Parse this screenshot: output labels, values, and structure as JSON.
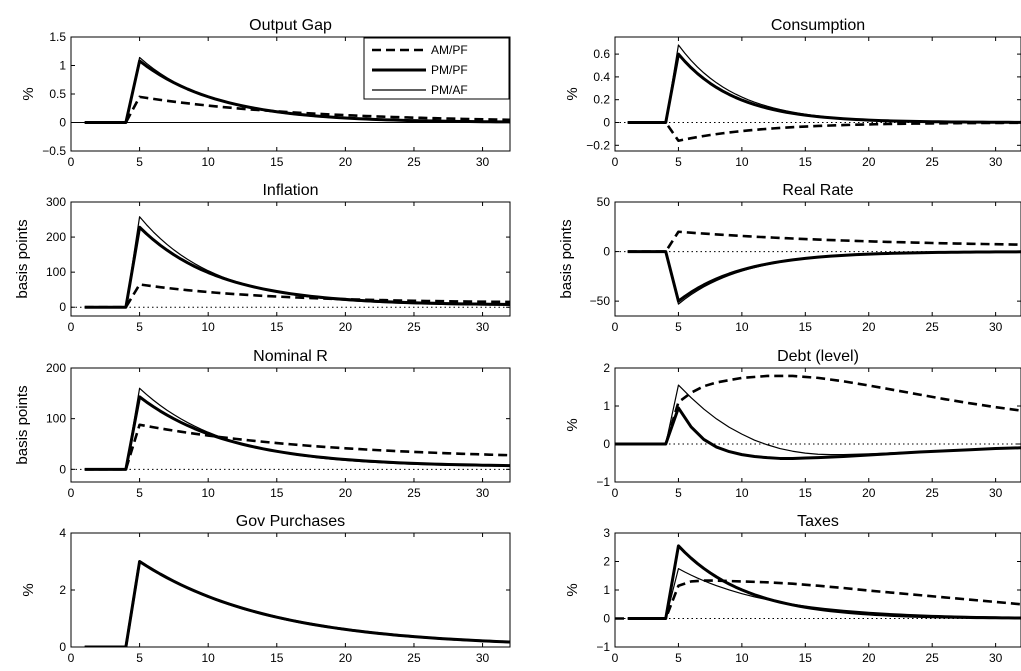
{
  "chart_data": [
    {
      "type": "line",
      "title": "Output Gap",
      "ylabel": "%",
      "xlim": [
        0,
        32
      ],
      "ylim": [
        -0.5,
        1.5
      ],
      "xticks": [
        0,
        5,
        10,
        15,
        20,
        25,
        30
      ],
      "yticks": [
        -0.5,
        0,
        0.5,
        1,
        1.5
      ],
      "ytick_labels": [
        "−0.5",
        "0",
        "0.5",
        "1",
        "1.5"
      ],
      "legend": {
        "position": "top-right",
        "entries": [
          "AM/PF",
          "PM/PF",
          "PM/AF"
        ]
      },
      "series": [
        {
          "name": "AM/PF",
          "style": "dashed",
          "start": 0,
          "peak": 0.45,
          "decay": 0.92,
          "end": 0
        },
        {
          "name": "PM/PF",
          "style": "thick",
          "start": 0,
          "peak": 1.08,
          "decay": 0.84,
          "end": 0
        },
        {
          "name": "PM/AF",
          "style": "thin",
          "start": 0,
          "peak": 1.14,
          "decay": 0.83,
          "end": 0
        }
      ]
    },
    {
      "type": "line",
      "title": "Consumption",
      "ylabel": "%",
      "xlim": [
        0,
        32
      ],
      "ylim": [
        -0.25,
        0.75
      ],
      "xticks": [
        0,
        5,
        10,
        15,
        20,
        25,
        30
      ],
      "yticks": [
        -0.2,
        0,
        0.2,
        0.4,
        0.6
      ],
      "ytick_labels": [
        "−0.2",
        "0",
        "0.2",
        "0.4",
        "0.6"
      ],
      "series": [
        {
          "name": "AM/PF",
          "style": "dashed",
          "start": 0,
          "peak": -0.16,
          "decay": 0.86,
          "end": 0
        },
        {
          "name": "PM/PF",
          "style": "thick",
          "start": 0,
          "peak": 0.6,
          "decay": 0.8,
          "end": 0
        },
        {
          "name": "PM/AF",
          "style": "thin",
          "start": 0,
          "peak": 0.68,
          "decay": 0.8,
          "end": 0
        }
      ]
    },
    {
      "type": "line",
      "title": "Inflation",
      "ylabel": "basis points",
      "xlim": [
        0,
        32
      ],
      "ylim": [
        -25,
        300
      ],
      "xticks": [
        0,
        5,
        10,
        15,
        20,
        25,
        30
      ],
      "yticks": [
        0,
        100,
        200,
        300
      ],
      "ytick_labels": [
        "0",
        "100",
        "200",
        "300"
      ],
      "series": [
        {
          "name": "AM/PF",
          "style": "dashed",
          "start": 0,
          "peak": 65,
          "decay": 0.9,
          "end": 12
        },
        {
          "name": "PM/PF",
          "style": "thick",
          "start": 0,
          "peak": 228,
          "decay": 0.84,
          "end": 6
        },
        {
          "name": "PM/AF",
          "style": "thin",
          "start": 0,
          "peak": 258,
          "decay": 0.83,
          "end": 4
        }
      ]
    },
    {
      "type": "line",
      "title": "Real Rate",
      "ylabel": "basis points",
      "xlim": [
        0,
        32
      ],
      "ylim": [
        -65,
        50
      ],
      "xticks": [
        0,
        5,
        10,
        15,
        20,
        25,
        30
      ],
      "yticks": [
        -50,
        0,
        50
      ],
      "ytick_labels": [
        "−50",
        "0",
        "50"
      ],
      "series": [
        {
          "name": "AM/PF",
          "style": "dashed",
          "start": 0,
          "peak": 20,
          "decay": 0.94,
          "end": 4
        },
        {
          "name": "PM/PF",
          "style": "thick",
          "start": 0,
          "peak": -50,
          "decay": 0.82,
          "end": 0
        },
        {
          "name": "PM/AF",
          "style": "thin",
          "start": 0,
          "peak": -53,
          "decay": 0.82,
          "end": 0
        }
      ]
    },
    {
      "type": "line",
      "title": "Nominal R",
      "ylabel": "basis points",
      "xlim": [
        0,
        32
      ],
      "ylim": [
        -25,
        200
      ],
      "xticks": [
        0,
        5,
        10,
        15,
        20,
        25,
        30
      ],
      "yticks": [
        0,
        100,
        200
      ],
      "ytick_labels": [
        "0",
        "100",
        "200"
      ],
      "series": [
        {
          "name": "AM/PF",
          "style": "dashed",
          "start": 0,
          "peak": 88,
          "decay": 0.93,
          "end": 18
        },
        {
          "name": "PM/PF",
          "style": "thick",
          "start": 0,
          "peak": 143,
          "decay": 0.86,
          "end": 5
        },
        {
          "name": "PM/AF",
          "style": "thin",
          "start": 0,
          "peak": 160,
          "decay": 0.85,
          "end": 4
        }
      ]
    },
    {
      "type": "line",
      "title": "Debt (level)",
      "ylabel": "%",
      "xlim": [
        0,
        32
      ],
      "ylim": [
        -1,
        2
      ],
      "xticks": [
        0,
        5,
        10,
        15,
        20,
        25,
        30
      ],
      "yticks": [
        -1,
        0,
        1,
        2
      ],
      "ytick_labels": [
        "−1",
        "0",
        "1",
        "2"
      ],
      "series": [
        {
          "name": "AM/PF",
          "style": "dashed",
          "x": [
            0,
            1,
            2,
            3,
            4,
            5,
            6,
            7,
            8,
            10,
            12,
            14,
            16,
            18,
            20,
            22,
            24,
            26,
            28,
            30,
            32
          ],
          "y": [
            0,
            0,
            0,
            0,
            0,
            1.1,
            1.35,
            1.52,
            1.62,
            1.74,
            1.79,
            1.79,
            1.74,
            1.65,
            1.54,
            1.42,
            1.3,
            1.18,
            1.07,
            0.97,
            0.88
          ]
        },
        {
          "name": "PM/PF",
          "style": "thick",
          "x": [
            0,
            1,
            2,
            3,
            4,
            5,
            6,
            7,
            8,
            9,
            10,
            11,
            12,
            13,
            14,
            15,
            16,
            18,
            20,
            22,
            24,
            26,
            28,
            30,
            32
          ],
          "y": [
            0,
            0,
            0,
            0,
            0,
            0.95,
            0.45,
            0.12,
            -0.08,
            -0.2,
            -0.28,
            -0.33,
            -0.36,
            -0.38,
            -0.38,
            -0.37,
            -0.36,
            -0.33,
            -0.29,
            -0.25,
            -0.21,
            -0.18,
            -0.15,
            -0.12,
            -0.1
          ]
        },
        {
          "name": "PM/AF",
          "style": "thin",
          "x": [
            0,
            1,
            2,
            3,
            4,
            5,
            6,
            7,
            8,
            9,
            10,
            11,
            12,
            13,
            14,
            15,
            16,
            17,
            18,
            20,
            22,
            24,
            26,
            28,
            30,
            32
          ],
          "y": [
            0,
            0,
            0,
            0,
            0,
            1.55,
            1.22,
            0.92,
            0.66,
            0.44,
            0.26,
            0.1,
            -0.02,
            -0.12,
            -0.19,
            -0.24,
            -0.27,
            -0.28,
            -0.28,
            -0.26,
            -0.23,
            -0.2,
            -0.17,
            -0.14,
            -0.12,
            -0.1
          ]
        }
      ]
    },
    {
      "type": "line",
      "title": "Gov Purchases",
      "ylabel": "%",
      "xlim": [
        0,
        32
      ],
      "ylim": [
        0,
        4
      ],
      "xticks": [
        0,
        5,
        10,
        15,
        20,
        25,
        30
      ],
      "yticks": [
        0,
        2,
        4
      ],
      "ytick_labels": [
        "0",
        "2",
        "4"
      ],
      "series": [
        {
          "name": "AM/PF",
          "style": "dashed",
          "start": 0,
          "peak": 3.0,
          "decay": 0.9,
          "end": 0
        },
        {
          "name": "PM/PF",
          "style": "thick",
          "start": 0,
          "peak": 3.0,
          "decay": 0.9,
          "end": 0
        },
        {
          "name": "PM/AF",
          "style": "thin",
          "start": 0,
          "peak": 3.0,
          "decay": 0.9,
          "end": 0
        }
      ]
    },
    {
      "type": "line",
      "title": "Taxes",
      "ylabel": "%",
      "xlim": [
        0,
        32
      ],
      "ylim": [
        -1,
        3
      ],
      "xticks": [
        0,
        5,
        10,
        15,
        20,
        25,
        30
      ],
      "yticks": [
        -1,
        0,
        1,
        2,
        3
      ],
      "ytick_labels": [
        "−1",
        "0",
        "1",
        "2",
        "3"
      ],
      "series": [
        {
          "name": "AM/PF",
          "style": "dashed",
          "x": [
            0,
            1,
            2,
            3,
            4,
            5,
            6,
            7,
            8,
            10,
            12,
            14,
            16,
            18,
            20,
            22,
            24,
            26,
            28,
            30,
            32
          ],
          "y": [
            0,
            0,
            0,
            0,
            0,
            1.15,
            1.3,
            1.33,
            1.33,
            1.3,
            1.27,
            1.22,
            1.15,
            1.07,
            0.98,
            0.9,
            0.82,
            0.74,
            0.66,
            0.58,
            0.5
          ]
        },
        {
          "name": "PM/PF",
          "style": "thick",
          "start": 0,
          "peak": 2.55,
          "decay": 0.83,
          "end": 0
        },
        {
          "name": "PM/AF",
          "style": "thin",
          "start": 0,
          "peak": 1.75,
          "decay": 0.87,
          "end": 0
        }
      ]
    }
  ]
}
